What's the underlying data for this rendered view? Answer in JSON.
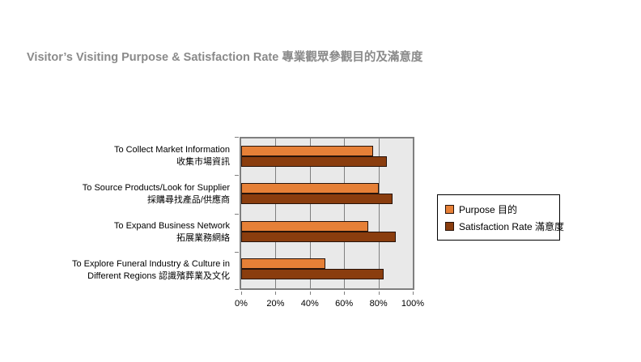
{
  "title": "Visitor’s Visiting Purpose & Satisfaction Rate 專業觀眾參觀目的及滿意度",
  "colors": {
    "title_text": "#8A8A8A",
    "plot_background": "#E9E9E9",
    "grid_line": "#7F7F7F",
    "purpose_bar": "#E68037",
    "satisfaction_bar": "#8A3D0E",
    "bar_border": "#27130A",
    "legend_border": "#000000"
  },
  "legend": {
    "purpose_label": "Purpose 目的",
    "satisfaction_label": "Satisfaction Rate 滿意度"
  },
  "chart_data": {
    "type": "bar",
    "orientation": "horizontal",
    "title": "Visitor’s Visiting Purpose & Satisfaction Rate 專業觀眾參觀目的及滿意度",
    "categories": [
      {
        "line1": "To Collect Market Information",
        "line2": "收集市場資訊"
      },
      {
        "line1": "To Source Products/Look for Supplier",
        "line2": "採購尋找產品/供應商"
      },
      {
        "line1": "To Expand Business Network",
        "line2": "拓展業務網絡"
      },
      {
        "line1": "To Explore Funeral Industry & Culture in",
        "line2": "Different Regions 認識殯葬業及文化"
      }
    ],
    "series": [
      {
        "name": "Purpose 目的",
        "color": "#E68037",
        "values": [
          77,
          80,
          74,
          49
        ]
      },
      {
        "name": "Satisfaction Rate 滿意度",
        "color": "#8A3D0E",
        "values": [
          85,
          88,
          90,
          83
        ]
      }
    ],
    "x_ticks": [
      "0%",
      "20%",
      "40%",
      "60%",
      "80%",
      "100%"
    ],
    "xlim": [
      0,
      100
    ],
    "grid": true,
    "legend_position": "right",
    "plot_area_background": "#E9E9E9"
  }
}
